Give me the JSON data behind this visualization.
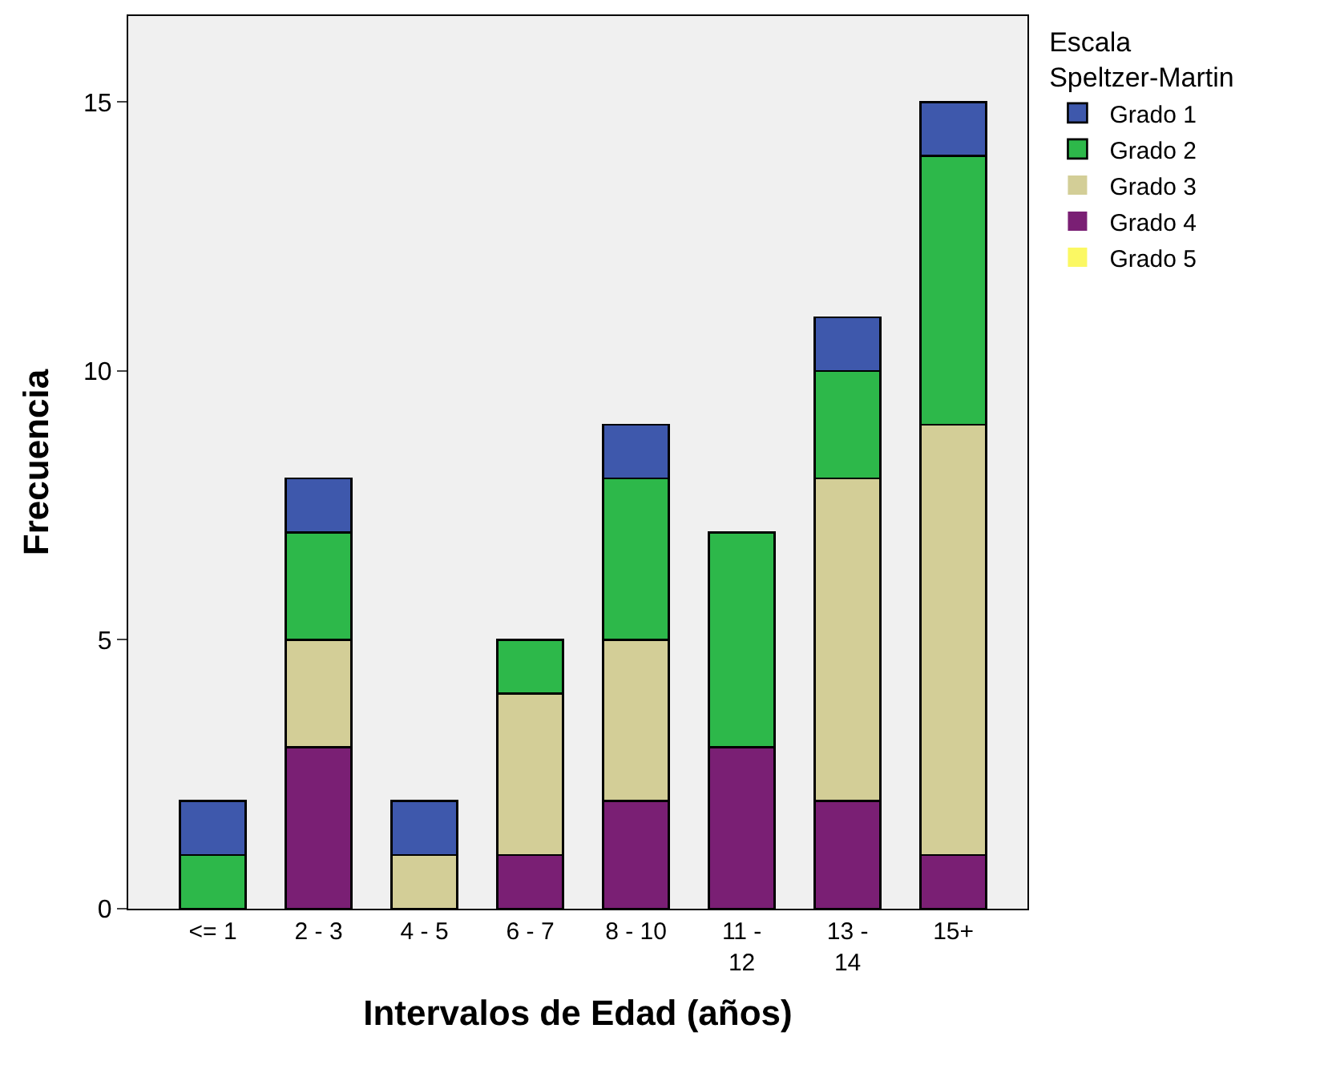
{
  "chart_data": {
    "type": "bar",
    "stacked": true,
    "xlabel": "Intervalos de Edad (años)",
    "ylabel": "Frecuencia",
    "legend_title": "Escala\nSpeltzer-Martin",
    "legend": "top right",
    "categories": [
      "<= 1",
      "2 - 3",
      "4 - 5",
      "6 - 7",
      "8 - 10",
      "11 -\n12",
      "13 -\n14",
      "15+"
    ],
    "ylim": [
      0,
      16.6
    ],
    "yticks": [
      0,
      5,
      10,
      15
    ],
    "grid": false,
    "series": [
      {
        "name": "Grado 5",
        "color": "#fbf863",
        "values": [
          0,
          0,
          0,
          0,
          0,
          0,
          0,
          0
        ]
      },
      {
        "name": "Grado 4",
        "color": "#7a1f74",
        "values": [
          0,
          3,
          0,
          1,
          2,
          3,
          2,
          1
        ]
      },
      {
        "name": "Grado 3",
        "color": "#d3ce97",
        "values": [
          0,
          2,
          1,
          3,
          3,
          0,
          6,
          8
        ]
      },
      {
        "name": "Grado 2",
        "color": "#2db84a",
        "values": [
          1,
          2,
          0,
          1,
          3,
          4,
          2,
          5
        ]
      },
      {
        "name": "Grado 1",
        "color": "#3e58ac",
        "values": [
          1,
          1,
          1,
          0,
          1,
          0,
          1,
          1
        ]
      }
    ]
  }
}
